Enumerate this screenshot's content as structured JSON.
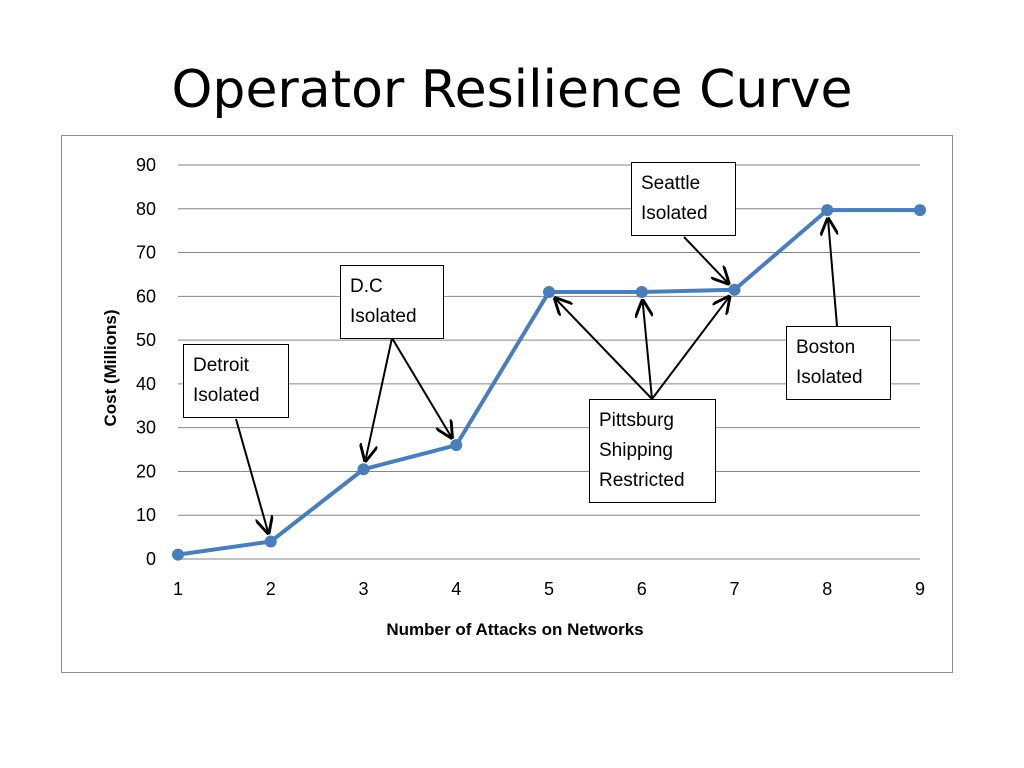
{
  "title": "Operator Resilience Curve",
  "chart_data": {
    "type": "line",
    "xlabel": "Number of Attacks on Networks",
    "ylabel": "Cost (Millions)",
    "x": [
      1,
      2,
      3,
      4,
      5,
      6,
      7,
      8,
      9
    ],
    "series": [
      {
        "values": [
          1,
          4,
          20.5,
          26,
          61,
          61,
          61.5,
          79.7,
          79.7
        ]
      }
    ],
    "ylim": [
      0,
      90
    ],
    "yticks": [
      0,
      10,
      20,
      30,
      40,
      50,
      60,
      70,
      80,
      90
    ],
    "xticks": [
      "1",
      "2",
      "3",
      "4",
      "5",
      "6",
      "7",
      "8",
      "9"
    ],
    "grid": true,
    "colors": {
      "line": "#4a7ebb",
      "grid": "#868686"
    },
    "annotations": [
      {
        "lines": [
          "Detroit",
          "Isolated"
        ],
        "targets": [
          2
        ]
      },
      {
        "lines": [
          "D.C",
          "Isolated"
        ],
        "targets": [
          3,
          4
        ]
      },
      {
        "lines": [
          "Pittsburg",
          "Shipping",
          "Restricted"
        ],
        "targets": [
          5,
          6,
          7
        ]
      },
      {
        "lines": [
          "Seattle",
          "Isolated"
        ],
        "targets": [
          7
        ]
      },
      {
        "lines": [
          "Boston",
          "Isolated"
        ],
        "targets": [
          8
        ]
      }
    ]
  }
}
